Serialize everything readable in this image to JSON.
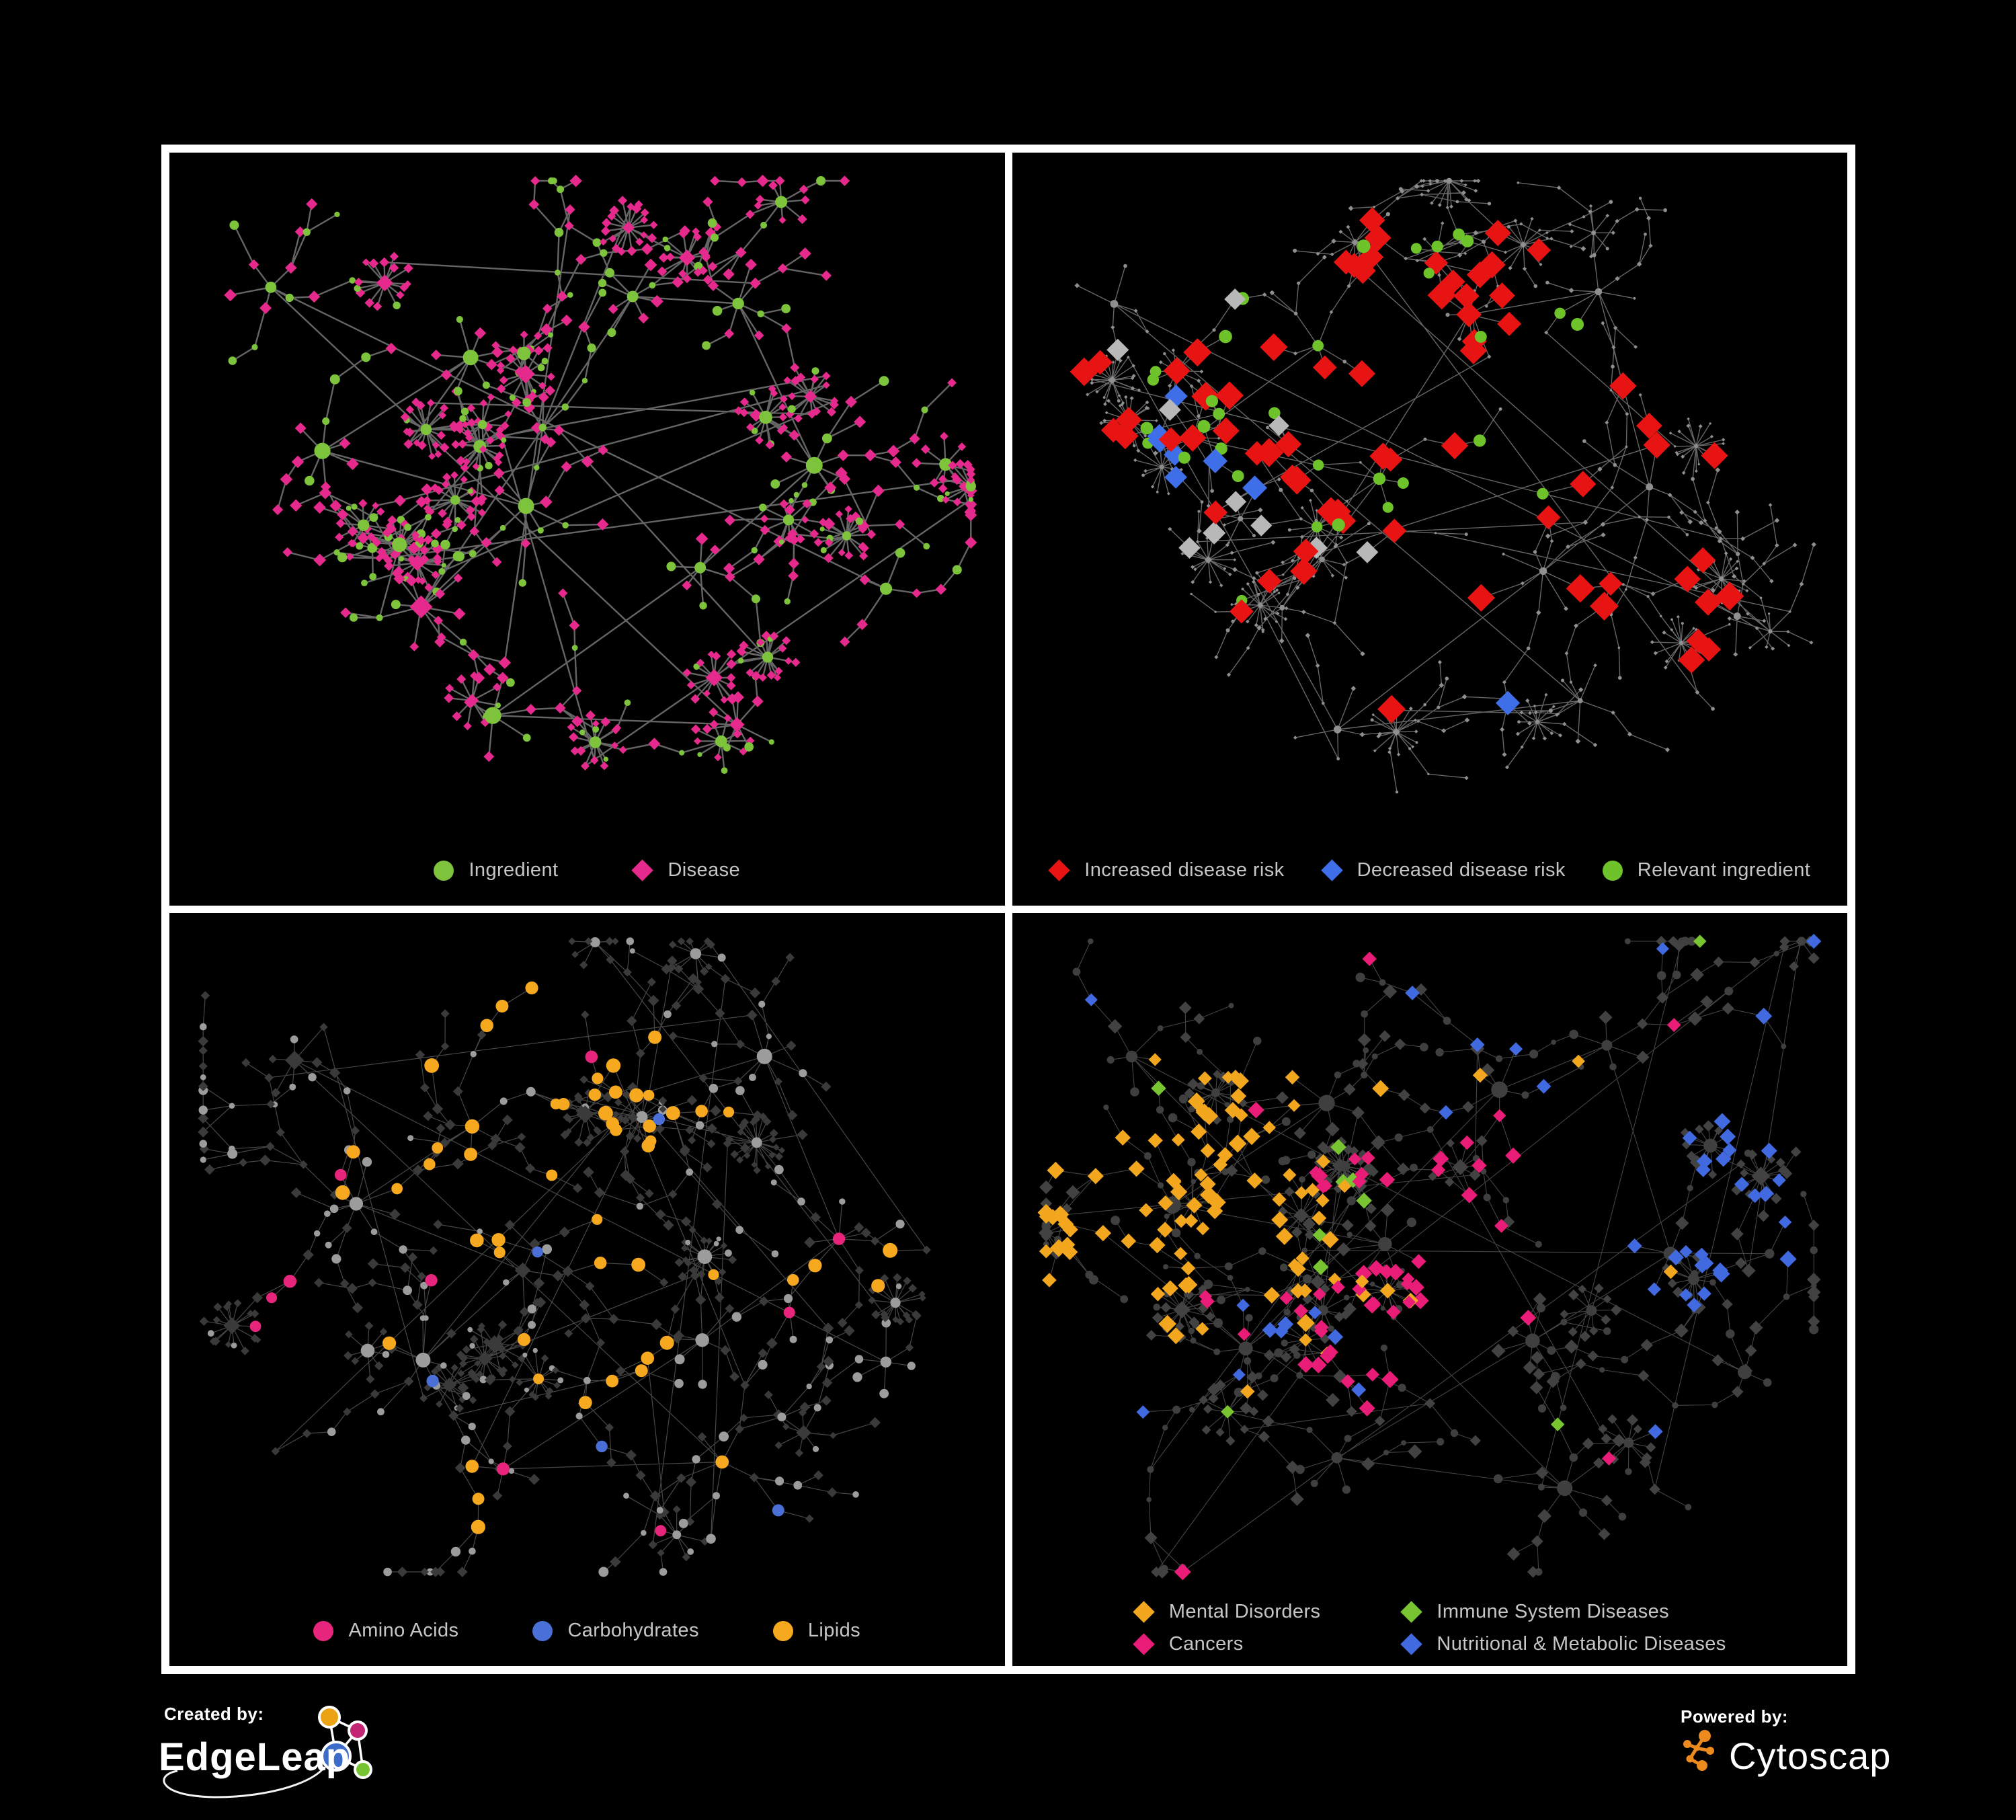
{
  "poster": {
    "background": "#000000",
    "frame_color": "#ffffff"
  },
  "panels": [
    {
      "id": "ingredients-diseases",
      "legend": [
        {
          "shape": "circle",
          "color": "#7dc43c",
          "label": "Ingredient"
        },
        {
          "shape": "diamond",
          "color": "#e62a8d",
          "label": "Disease"
        }
      ],
      "render": {
        "seed": 11,
        "edge": {
          "color": "#6a6a6a",
          "width": 2.4,
          "opacity": 0.95
        },
        "base": {
          "circle": "#7dc43c",
          "diamond": "#e62a8d",
          "circleScale": 1,
          "diamondScale": 1
        },
        "highlights": []
      }
    },
    {
      "id": "disease-risk",
      "legend": [
        {
          "shape": "diamond",
          "color": "#e81313",
          "label": "Increased disease risk"
        },
        {
          "shape": "diamond",
          "color": "#3e6ee8",
          "label": "Decreased disease risk"
        },
        {
          "shape": "circle",
          "color": "#6ec32a",
          "label": "Relevant ingredient"
        }
      ],
      "render": {
        "seed": 22,
        "edge": {
          "color": "#787878",
          "width": 1.4,
          "opacity": 0.85
        },
        "base": {
          "circle": "#8f8f8f",
          "diamond": "#8f8f8f",
          "circleScale": 0.42,
          "diamondScale": 0.42
        },
        "highlights": [
          {
            "shape": "diamond",
            "color": "#e81313",
            "size": 13,
            "jitter": 3,
            "global": 0.012,
            "clusters": [
              [
                0.42,
                0.35,
                0.2,
                0.55
              ],
              [
                0.55,
                0.48,
                0.15,
                0.5
              ],
              [
                0.3,
                0.4,
                0.08,
                0.5
              ],
              [
                0.66,
                0.33,
                0.06,
                0.6
              ],
              [
                0.76,
                0.72,
                0.08,
                0.55
              ]
            ]
          },
          {
            "shape": "diamond",
            "color": "#3e6ee8",
            "size": 12,
            "jitter": 2,
            "global": 0.003,
            "clusters": [
              [
                0.26,
                0.44,
                0.07,
                0.8
              ],
              [
                0.9,
                0.3,
                0.04,
                1.2
              ]
            ]
          },
          {
            "shape": "diamond",
            "color": "#b8b8b8",
            "size": 11,
            "jitter": 2,
            "global": 0.002,
            "clusters": [
              [
                0.4,
                0.47,
                0.18,
                0.14
              ],
              [
                0.23,
                0.36,
                0.05,
                0.5
              ]
            ]
          },
          {
            "shape": "circle",
            "color": "#6ec32a",
            "size": 8,
            "jitter": 2,
            "global": 0.012,
            "clusters": [
              [
                0.44,
                0.4,
                0.22,
                0.45
              ],
              [
                0.25,
                0.33,
                0.1,
                0.4
              ]
            ]
          }
        ]
      }
    },
    {
      "id": "nutrient-groups",
      "legend": [
        {
          "shape": "circle",
          "color": "#e7257d",
          "label": "Amino Acids"
        },
        {
          "shape": "circle",
          "color": "#4a6fd6",
          "label": "Carbohydrates"
        },
        {
          "shape": "circle",
          "color": "#f6a81f",
          "label": "Lipids"
        }
      ],
      "render": {
        "seed": 33,
        "edge": {
          "color": "#aaaaaa",
          "width": 1.2,
          "opacity": 0.42
        },
        "base": {
          "circle": "#9c9c9c",
          "diamond": "#3a3a3a",
          "circleScale": 1,
          "diamondScale": 0.9
        },
        "highlights": [
          {
            "shape": "circle",
            "color": "#f6a81f",
            "size": 8,
            "jitter": 3,
            "global": 0.035,
            "clusters": [
              [
                0.44,
                0.32,
                0.16,
                0.9
              ],
              [
                0.38,
                0.45,
                0.12,
                0.5
              ],
              [
                0.55,
                0.6,
                0.08,
                0.7
              ],
              [
                0.78,
                0.55,
                0.06,
                0.5
              ]
            ]
          },
          {
            "shape": "circle",
            "color": "#4a6fd6",
            "size": 8,
            "jitter": 2,
            "global": 0.012,
            "clusters": [
              [
                0.44,
                0.38,
                0.1,
                0.55
              ]
            ]
          },
          {
            "shape": "circle",
            "color": "#e7257d",
            "size": 8,
            "jitter": 2,
            "global": 0.045,
            "clusters": [
              [
                0.15,
                0.55,
                0.1,
                0.25
              ]
            ]
          }
        ]
      }
    },
    {
      "id": "disease-categories",
      "legend": [
        {
          "shape": "diamond",
          "color": "#f2a71f",
          "label": "Mental Disorders"
        },
        {
          "shape": "diamond",
          "color": "#79c531",
          "label": "Immune System Diseases"
        },
        {
          "shape": "diamond",
          "color": "#e91c77",
          "label": "Cancers"
        },
        {
          "shape": "diamond",
          "color": "#4169e0",
          "label": "Nutritional & Metabolic Diseases"
        }
      ],
      "render": {
        "seed": 44,
        "edge": {
          "color": "#aaaaaa",
          "width": 1.1,
          "opacity": 0.4
        },
        "base": {
          "circle": "#3f3f3f",
          "diamond": "#424242",
          "circleScale": 0.95,
          "diamondScale": 1.15
        },
        "highlights": [
          {
            "shape": "diamond",
            "color": "#f2a71f",
            "size": 7,
            "jitter": 3,
            "global": 0.02,
            "clusters": [
              [
                0.17,
                0.44,
                0.15,
                1.4
              ],
              [
                0.28,
                0.24,
                0.09,
                0.5
              ],
              [
                0.42,
                0.6,
                0.05,
                0.5
              ]
            ]
          },
          {
            "shape": "diamond",
            "color": "#e91c77",
            "size": 7,
            "jitter": 2.5,
            "global": 0.02,
            "clusters": [
              [
                0.5,
                0.5,
                0.13,
                1.0
              ],
              [
                0.44,
                0.66,
                0.09,
                0.6
              ],
              [
                0.93,
                0.27,
                0.05,
                1.0
              ],
              [
                0.6,
                0.4,
                0.08,
                0.5
              ]
            ]
          },
          {
            "shape": "diamond",
            "color": "#4169e0",
            "size": 7,
            "jitter": 2.5,
            "global": 0.03,
            "clusters": [
              [
                0.74,
                0.34,
                0.18,
                0.5
              ],
              [
                0.3,
                0.6,
                0.06,
                0.9
              ],
              [
                0.13,
                0.12,
                0.09,
                0.5
              ],
              [
                0.66,
                0.12,
                0.12,
                0.45
              ],
              [
                0.86,
                0.5,
                0.08,
                0.5
              ],
              [
                0.24,
                0.88,
                0.06,
                0.6
              ]
            ]
          },
          {
            "shape": "diamond",
            "color": "#79c531",
            "size": 7,
            "jitter": 2,
            "global": 0.01,
            "clusters": [
              [
                0.5,
                0.35,
                0.15,
                0.15
              ]
            ]
          }
        ]
      }
    }
  ],
  "network": {
    "anchors": [
      [
        0.36,
        0.3
      ],
      [
        0.2,
        0.44
      ],
      [
        0.44,
        0.5
      ],
      [
        0.3,
        0.66
      ],
      [
        0.56,
        0.24
      ],
      [
        0.7,
        0.22
      ],
      [
        0.78,
        0.48
      ],
      [
        0.62,
        0.62
      ],
      [
        0.4,
        0.82
      ],
      [
        0.68,
        0.82
      ],
      [
        0.14,
        0.22
      ],
      [
        0.86,
        0.66
      ]
    ],
    "cluster_sizes": [
      85,
      65,
      80,
      55,
      45,
      40,
      45,
      50,
      40,
      35,
      25,
      25
    ],
    "extra_links": 16
  },
  "footer": {
    "created_by": "Created by:",
    "edgeleap": "EdgeLeap",
    "powered_by": "Powered by:",
    "cytoscape": "Cytoscape",
    "edgeleap_colors": {
      "orange": "#eba313",
      "pink": "#c22572",
      "blue": "#3c6bc9",
      "green": "#76c432"
    },
    "cytoscape_orange": "#ec8a1d"
  }
}
